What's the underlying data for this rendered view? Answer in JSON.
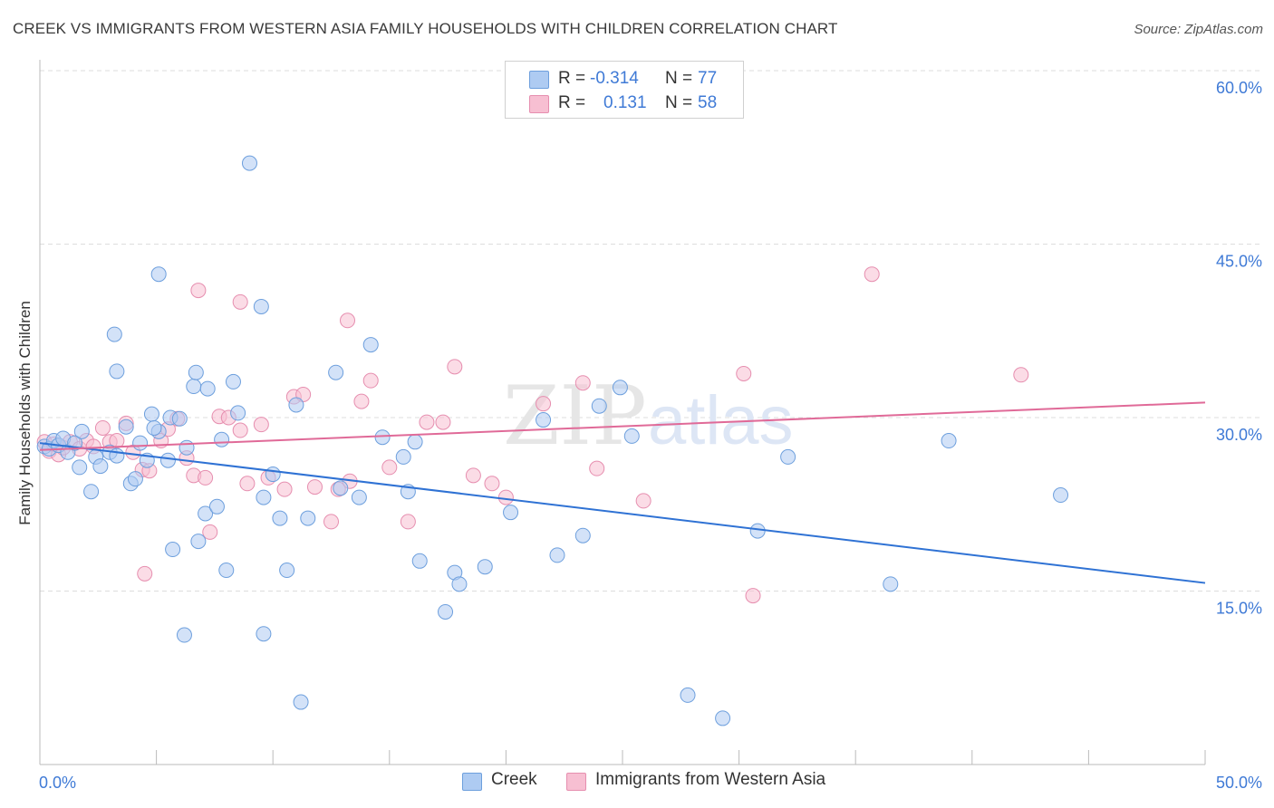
{
  "title": "CREEK VS IMMIGRANTS FROM WESTERN ASIA FAMILY HOUSEHOLDS WITH CHILDREN CORRELATION CHART",
  "source": "Source: ZipAtlas.com",
  "watermark": {
    "zip": "ZIP",
    "atlas": "atlas"
  },
  "legend": {
    "rows": [
      {
        "r_label": "R =",
        "r_value": "-0.314",
        "n_label": "N =",
        "n_value": "77"
      },
      {
        "r_label": "R =",
        "r_value": "0.131",
        "n_label": "N =",
        "n_value": "58"
      }
    ]
  },
  "bottom_legend": {
    "series1": "Creek",
    "series2": "Immigrants from Western Asia"
  },
  "chart_data": {
    "type": "scatter",
    "title": "CREEK VS IMMIGRANTS FROM WESTERN ASIA FAMILY HOUSEHOLDS WITH CHILDREN CORRELATION CHART",
    "xlabel": "",
    "ylabel": "Family Households with Children",
    "xlim": [
      0,
      50
    ],
    "ylim": [
      0,
      60
    ],
    "x_tick_labels": [
      "0.0%",
      "50.0%"
    ],
    "y_ticks": [
      15,
      30,
      45,
      60
    ],
    "y_tick_labels": [
      "15.0%",
      "30.0%",
      "45.0%",
      "60.0%"
    ],
    "grid": true,
    "colors": {
      "creek_fill": "#aecbf2",
      "creek_stroke": "#6d9fdd",
      "creek_line": "#2f72d4",
      "imm_fill": "#f7bfd2",
      "imm_stroke": "#e68eaf",
      "imm_line": "#e06a98",
      "axis_text": "#3f7ad6",
      "grid": "#dddddd"
    },
    "series": [
      {
        "name": "Creek",
        "r": -0.314,
        "n": 77,
        "trend": {
          "x0": 0,
          "y0": 27.8,
          "x1": 50,
          "y1": 15.7
        },
        "points": [
          [
            0.2,
            27.5
          ],
          [
            0.4,
            27.3
          ],
          [
            0.6,
            28
          ],
          [
            0.8,
            27.6
          ],
          [
            1.0,
            28.2
          ],
          [
            1.2,
            27.0
          ],
          [
            1.5,
            27.8
          ],
          [
            1.8,
            28.8
          ],
          [
            1.7,
            25.7
          ],
          [
            2.2,
            23.6
          ],
          [
            2.4,
            26.6
          ],
          [
            2.6,
            25.8
          ],
          [
            3.0,
            27.0
          ],
          [
            3.3,
            26.7
          ],
          [
            3.7,
            29.2
          ],
          [
            3.9,
            24.3
          ],
          [
            4.1,
            24.7
          ],
          [
            4.3,
            27.8
          ],
          [
            4.6,
            26.3
          ],
          [
            4.8,
            30.3
          ],
          [
            5.1,
            28.8
          ],
          [
            5.5,
            26.3
          ],
          [
            5.6,
            30.0
          ],
          [
            6.0,
            29.9
          ],
          [
            6.3,
            27.4
          ],
          [
            4.9,
            29.1
          ],
          [
            6.6,
            32.7
          ],
          [
            6.7,
            33.9
          ],
          [
            7.2,
            32.5
          ],
          [
            7.8,
            28.1
          ],
          [
            8.3,
            33.1
          ],
          [
            8.5,
            30.4
          ],
          [
            9.6,
            23.1
          ],
          [
            10.0,
            25.1
          ],
          [
            10.3,
            21.3
          ],
          [
            11.0,
            31.1
          ],
          [
            11.5,
            21.3
          ],
          [
            12.7,
            33.9
          ],
          [
            12.9,
            23.9
          ],
          [
            13.7,
            23.1
          ],
          [
            14.2,
            36.3
          ],
          [
            14.7,
            28.3
          ],
          [
            15.6,
            26.6
          ],
          [
            15.8,
            23.6
          ],
          [
            16.1,
            27.9
          ],
          [
            16.3,
            17.6
          ],
          [
            17.4,
            13.2
          ],
          [
            17.8,
            16.6
          ],
          [
            18.0,
            15.6
          ],
          [
            19.1,
            17.1
          ],
          [
            20.2,
            21.8
          ],
          [
            21.6,
            29.8
          ],
          [
            22.2,
            18.1
          ],
          [
            23.3,
            19.8
          ],
          [
            24.0,
            31.0
          ],
          [
            24.9,
            32.6
          ],
          [
            25.4,
            28.4
          ],
          [
            27.8,
            6.0
          ],
          [
            29.3,
            4.0
          ],
          [
            30.8,
            20.2
          ],
          [
            32.1,
            26.6
          ],
          [
            36.5,
            15.6
          ],
          [
            39.0,
            28.0
          ],
          [
            43.8,
            23.3
          ],
          [
            6.2,
            11.2
          ],
          [
            9.6,
            11.3
          ],
          [
            11.2,
            5.4
          ],
          [
            7.1,
            21.7
          ],
          [
            7.6,
            22.3
          ],
          [
            8.0,
            16.8
          ],
          [
            10.6,
            16.8
          ],
          [
            5.7,
            18.6
          ],
          [
            6.8,
            19.3
          ],
          [
            3.3,
            34.0
          ],
          [
            3.2,
            37.2
          ],
          [
            5.1,
            42.4
          ],
          [
            9.0,
            52.0
          ],
          [
            9.5,
            39.6
          ]
        ]
      },
      {
        "name": "Immigrants from Western Asia",
        "r": 0.131,
        "n": 58,
        "trend": {
          "x0": 0,
          "y0": 27.2,
          "x1": 50,
          "y1": 31.3
        },
        "points": [
          [
            0.2,
            27.9
          ],
          [
            0.4,
            27.1
          ],
          [
            0.6,
            27.7
          ],
          [
            0.8,
            26.8
          ],
          [
            1.0,
            27.4
          ],
          [
            1.3,
            27.9
          ],
          [
            1.7,
            27.3
          ],
          [
            2.0,
            28.0
          ],
          [
            2.3,
            27.5
          ],
          [
            2.7,
            29.1
          ],
          [
            3.0,
            27.9
          ],
          [
            3.3,
            28.0
          ],
          [
            3.7,
            29.5
          ],
          [
            4.0,
            27.0
          ],
          [
            4.4,
            25.5
          ],
          [
            4.7,
            25.4
          ],
          [
            5.2,
            28.0
          ],
          [
            5.5,
            29.0
          ],
          [
            5.9,
            29.9
          ],
          [
            6.3,
            26.5
          ],
          [
            6.6,
            25.0
          ],
          [
            7.1,
            24.8
          ],
          [
            7.3,
            20.1
          ],
          [
            7.7,
            30.1
          ],
          [
            8.1,
            30.0
          ],
          [
            8.6,
            28.9
          ],
          [
            8.9,
            24.3
          ],
          [
            9.5,
            29.4
          ],
          [
            9.8,
            24.8
          ],
          [
            10.5,
            23.8
          ],
          [
            10.9,
            31.8
          ],
          [
            11.3,
            32.0
          ],
          [
            11.8,
            24.0
          ],
          [
            12.5,
            21.0
          ],
          [
            12.8,
            23.8
          ],
          [
            13.3,
            24.5
          ],
          [
            13.8,
            31.4
          ],
          [
            14.2,
            33.2
          ],
          [
            15.0,
            25.7
          ],
          [
            15.8,
            21.0
          ],
          [
            17.3,
            29.6
          ],
          [
            17.8,
            34.4
          ],
          [
            18.6,
            25.0
          ],
          [
            19.4,
            24.3
          ],
          [
            20.0,
            23.1
          ],
          [
            21.6,
            31.2
          ],
          [
            23.3,
            33.0
          ],
          [
            23.9,
            25.6
          ],
          [
            25.9,
            22.8
          ],
          [
            30.2,
            33.8
          ],
          [
            30.6,
            14.6
          ],
          [
            35.7,
            42.4
          ],
          [
            42.1,
            33.7
          ],
          [
            4.5,
            16.5
          ],
          [
            6.8,
            41.0
          ],
          [
            8.6,
            40.0
          ],
          [
            13.2,
            38.4
          ],
          [
            16.6,
            29.6
          ]
        ]
      }
    ]
  }
}
